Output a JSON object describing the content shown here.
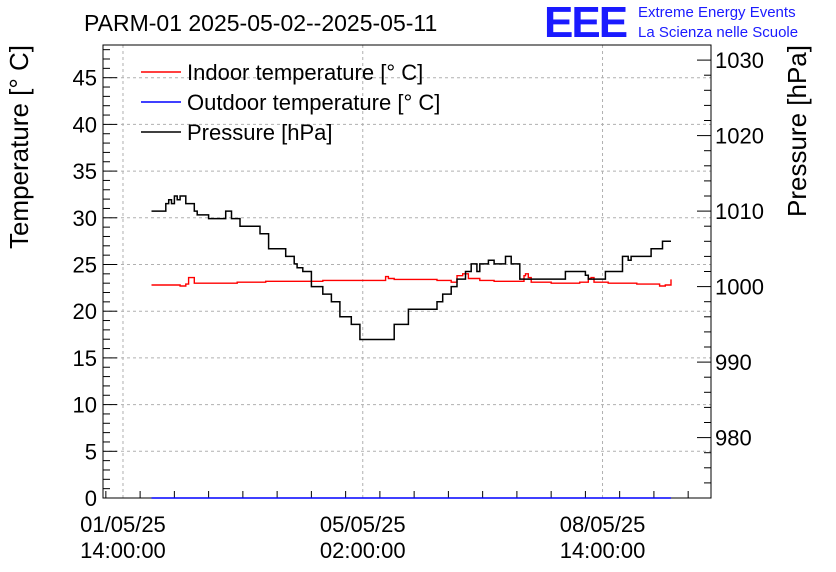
{
  "header": {
    "title": "PARM-01 2025-05-02--2025-05-11",
    "logo_text": "EEE",
    "logo_line1": "Extreme Energy Events",
    "logo_line2": "La Scienza nelle Scuole",
    "logo_color": "#1a1aff"
  },
  "chart_data": {
    "type": "line",
    "title": "PARM-01 2025-05-02--2025-05-11",
    "ylabel": "Temperature [° C]",
    "y2label": "Pressure [hPa]",
    "ylim": [
      0,
      48.5
    ],
    "y2lim": [
      972,
      1032
    ],
    "y_ticks": [
      0,
      5,
      10,
      15,
      20,
      25,
      30,
      35,
      40,
      45
    ],
    "y2_ticks": [
      980,
      990,
      1000,
      1010,
      1020,
      1030
    ],
    "x_tick_labels": [
      {
        "date": "01/05/25",
        "time": "14:00:00",
        "hours": 0
      },
      {
        "date": "05/05/25",
        "time": "02:00:00",
        "hours": 84
      },
      {
        "date": "08/05/25",
        "time": "14:00:00",
        "hours": 168
      }
    ],
    "xlim_hours": [
      -7,
      206
    ],
    "grid": true,
    "legend_position": "top-left",
    "series": [
      {
        "name": "Indoor temperature [° C]",
        "color": "#ff0000",
        "axis": "left",
        "x_hours": [
          10,
          20,
          22,
          23,
          25,
          30,
          40,
          50,
          60,
          70,
          80,
          90,
          92,
          93,
          95,
          100,
          110,
          115,
          117,
          119,
          121,
          125,
          130,
          135,
          140,
          140.5,
          141,
          142,
          143,
          150,
          155,
          160,
          163,
          164,
          165,
          170,
          175,
          180,
          185,
          188,
          190,
          192
        ],
        "values": [
          22.8,
          22.7,
          22.9,
          23.6,
          23.0,
          23.0,
          23.1,
          23.2,
          23.2,
          23.3,
          23.3,
          23.3,
          23.7,
          23.5,
          23.4,
          23.4,
          23.3,
          23.1,
          23.8,
          24.0,
          23.5,
          23.3,
          23.2,
          23.2,
          23.2,
          23.8,
          24.0,
          23.6,
          23.1,
          23.0,
          23.0,
          23.1,
          23.5,
          23.6,
          23.1,
          23.0,
          23.0,
          22.9,
          22.9,
          22.7,
          22.8,
          23.4
        ]
      },
      {
        "name": "Outdoor temperature [° C]",
        "color": "#0000ff",
        "axis": "left",
        "x_hours": [
          10,
          192
        ],
        "values": [
          0,
          0
        ]
      },
      {
        "name": "Pressure [hPa]",
        "color": "#000000",
        "axis": "right",
        "x_hours": [
          10,
          13,
          15,
          16,
          17,
          18,
          19,
          20,
          22,
          25,
          26,
          30,
          33,
          36,
          38,
          41,
          45,
          48,
          51,
          54,
          57,
          60,
          61,
          63,
          66,
          70,
          73,
          76,
          80,
          83,
          85,
          90,
          93,
          95,
          100,
          102,
          104,
          106,
          110,
          112,
          115,
          117,
          120,
          122,
          124,
          125,
          127,
          128,
          130,
          132,
          134,
          136,
          139,
          141,
          145,
          150,
          155,
          160,
          162,
          163,
          166,
          169,
          170,
          175,
          177,
          178,
          182,
          185,
          189,
          192
        ],
        "values": [
          1010,
          1010,
          1011,
          1011.5,
          1011,
          1012,
          1011.5,
          1012,
          1011,
          1010,
          1009.5,
          1009,
          1009,
          1010,
          1009,
          1008,
          1008,
          1007,
          1005,
          1005,
          1004,
          1003,
          1002.5,
          1002,
          1000,
          999,
          998,
          996,
          995,
          993,
          993,
          993,
          993,
          995,
          997,
          997,
          997,
          997,
          998,
          999,
          1000,
          1001,
          1002,
          1003,
          1002,
          1003,
          1003,
          1003.5,
          1003,
          1003,
          1004,
          1003,
          1001,
          1001,
          1001,
          1001,
          1002,
          1002,
          1001.5,
          1001,
          1001,
          1002,
          1002,
          1004,
          1003.5,
          1004,
          1004,
          1005,
          1006,
          1006
        ]
      }
    ]
  }
}
